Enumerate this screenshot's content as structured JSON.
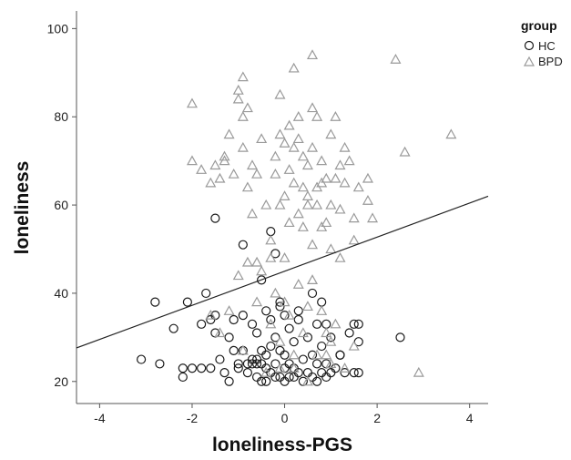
{
  "chart_data": {
    "type": "scatter",
    "xlabel": "loneliness-PGS",
    "ylabel": "loneliness",
    "xlim": [
      -4.5,
      4.4
    ],
    "ylim": [
      15,
      104
    ],
    "xticks": [
      -4,
      -2,
      0,
      2,
      4
    ],
    "yticks": [
      20,
      40,
      60,
      80,
      100
    ],
    "grid": false,
    "legend": {
      "title": "group",
      "position": "top-right"
    },
    "fit_line": {
      "x": [
        -4.5,
        4.4
      ],
      "y": [
        27.6,
        62.0
      ]
    },
    "series": [
      {
        "name": "HC",
        "marker": "circle",
        "color": "#1a1a1a",
        "points": [
          [
            -3.1,
            25
          ],
          [
            -2.8,
            38
          ],
          [
            -2.7,
            24
          ],
          [
            -2.4,
            32
          ],
          [
            -2.2,
            23
          ],
          [
            -2.2,
            21
          ],
          [
            -2.1,
            38
          ],
          [
            -2.0,
            23
          ],
          [
            -1.8,
            23
          ],
          [
            -1.8,
            33
          ],
          [
            -1.7,
            40
          ],
          [
            -1.6,
            23
          ],
          [
            -1.6,
            34
          ],
          [
            -1.5,
            57
          ],
          [
            -1.5,
            35
          ],
          [
            -1.5,
            31
          ],
          [
            -1.4,
            25
          ],
          [
            -1.3,
            22
          ],
          [
            -1.2,
            20
          ],
          [
            -1.2,
            30
          ],
          [
            -1.1,
            27
          ],
          [
            -1.1,
            34
          ],
          [
            -1.0,
            23
          ],
          [
            -1.0,
            24
          ],
          [
            -0.9,
            51
          ],
          [
            -0.9,
            27
          ],
          [
            -0.9,
            35
          ],
          [
            -0.8,
            24
          ],
          [
            -0.8,
            22
          ],
          [
            -0.7,
            25
          ],
          [
            -0.7,
            24
          ],
          [
            -0.7,
            33
          ],
          [
            -0.6,
            25
          ],
          [
            -0.6,
            24
          ],
          [
            -0.6,
            21
          ],
          [
            -0.6,
            31
          ],
          [
            -0.5,
            43
          ],
          [
            -0.5,
            24
          ],
          [
            -0.5,
            20
          ],
          [
            -0.5,
            27
          ],
          [
            -0.4,
            36
          ],
          [
            -0.4,
            23
          ],
          [
            -0.4,
            20
          ],
          [
            -0.4,
            26
          ],
          [
            -0.3,
            54
          ],
          [
            -0.3,
            28
          ],
          [
            -0.3,
            22
          ],
          [
            -0.3,
            34
          ],
          [
            -0.2,
            49
          ],
          [
            -0.2,
            24
          ],
          [
            -0.2,
            21
          ],
          [
            -0.2,
            30
          ],
          [
            -0.1,
            38
          ],
          [
            -0.1,
            27
          ],
          [
            -0.1,
            21
          ],
          [
            -0.1,
            37
          ],
          [
            0.0,
            26
          ],
          [
            0.0,
            23
          ],
          [
            0.0,
            20
          ],
          [
            0.0,
            35
          ],
          [
            0.1,
            32
          ],
          [
            0.1,
            24
          ],
          [
            0.1,
            21
          ],
          [
            0.2,
            29
          ],
          [
            0.2,
            23
          ],
          [
            0.2,
            21
          ],
          [
            0.3,
            36
          ],
          [
            0.3,
            22
          ],
          [
            0.3,
            34
          ],
          [
            0.4,
            25
          ],
          [
            0.4,
            20
          ],
          [
            0.5,
            30
          ],
          [
            0.5,
            22
          ],
          [
            0.6,
            40
          ],
          [
            0.6,
            26
          ],
          [
            0.6,
            21
          ],
          [
            0.7,
            33
          ],
          [
            0.7,
            24
          ],
          [
            0.7,
            20
          ],
          [
            0.8,
            38
          ],
          [
            0.8,
            28
          ],
          [
            0.8,
            22
          ],
          [
            0.9,
            33
          ],
          [
            0.9,
            24
          ],
          [
            0.9,
            21
          ],
          [
            1.0,
            30
          ],
          [
            1.0,
            22
          ],
          [
            1.1,
            23
          ],
          [
            1.2,
            26
          ],
          [
            1.2,
            26
          ],
          [
            1.3,
            22
          ],
          [
            1.4,
            31
          ],
          [
            1.5,
            33
          ],
          [
            1.5,
            22
          ],
          [
            1.6,
            33
          ],
          [
            1.6,
            22
          ],
          [
            1.6,
            29
          ],
          [
            2.5,
            30
          ]
        ]
      },
      {
        "name": "BPD",
        "marker": "triangle",
        "color": "#9a9a9a",
        "points": [
          [
            -2.0,
            83
          ],
          [
            -2.0,
            70
          ],
          [
            -1.8,
            68
          ],
          [
            -1.6,
            65
          ],
          [
            -1.5,
            69
          ],
          [
            -1.4,
            66
          ],
          [
            -1.3,
            70
          ],
          [
            -1.3,
            71
          ],
          [
            -1.2,
            76
          ],
          [
            -1.1,
            67
          ],
          [
            -1.0,
            84
          ],
          [
            -1.0,
            86
          ],
          [
            -0.9,
            80
          ],
          [
            -0.9,
            89
          ],
          [
            -0.9,
            73
          ],
          [
            -0.8,
            82
          ],
          [
            -0.8,
            64
          ],
          [
            -0.7,
            69
          ],
          [
            -0.7,
            58
          ],
          [
            -0.6,
            47
          ],
          [
            -0.6,
            67
          ],
          [
            -0.5,
            75
          ],
          [
            -0.4,
            60
          ],
          [
            -0.3,
            52
          ],
          [
            -0.2,
            71
          ],
          [
            -0.2,
            67
          ],
          [
            -0.1,
            85
          ],
          [
            -0.1,
            76
          ],
          [
            -0.1,
            60
          ],
          [
            0.0,
            74
          ],
          [
            0.0,
            62
          ],
          [
            0.0,
            48
          ],
          [
            0.1,
            78
          ],
          [
            0.1,
            68
          ],
          [
            0.1,
            56
          ],
          [
            0.2,
            91
          ],
          [
            0.2,
            73
          ],
          [
            0.2,
            65
          ],
          [
            0.3,
            80
          ],
          [
            0.3,
            75
          ],
          [
            0.3,
            58
          ],
          [
            0.4,
            71
          ],
          [
            0.4,
            64
          ],
          [
            0.4,
            55
          ],
          [
            0.5,
            69
          ],
          [
            0.5,
            60
          ],
          [
            0.5,
            62
          ],
          [
            0.6,
            94
          ],
          [
            0.6,
            82
          ],
          [
            0.6,
            73
          ],
          [
            0.7,
            80
          ],
          [
            0.7,
            64
          ],
          [
            0.7,
            60
          ],
          [
            0.8,
            70
          ],
          [
            0.8,
            65
          ],
          [
            0.8,
            55
          ],
          [
            0.9,
            66
          ],
          [
            0.9,
            56
          ],
          [
            1.0,
            76
          ],
          [
            1.0,
            60
          ],
          [
            1.0,
            50
          ],
          [
            1.1,
            80
          ],
          [
            1.1,
            66
          ],
          [
            1.2,
            69
          ],
          [
            1.2,
            59
          ],
          [
            1.3,
            73
          ],
          [
            1.3,
            65
          ],
          [
            1.4,
            70
          ],
          [
            1.5,
            57
          ],
          [
            1.5,
            52
          ],
          [
            1.6,
            64
          ],
          [
            1.8,
            66
          ],
          [
            1.8,
            61
          ],
          [
            1.9,
            57
          ],
          [
            2.4,
            93
          ],
          [
            2.6,
            72
          ],
          [
            3.6,
            76
          ],
          [
            -1.6,
            35
          ],
          [
            -1.4,
            31
          ],
          [
            -1.2,
            36
          ],
          [
            -1.0,
            44
          ],
          [
            -0.8,
            47
          ],
          [
            -0.6,
            38
          ],
          [
            -0.5,
            45
          ],
          [
            -0.3,
            33
          ],
          [
            -0.2,
            40
          ],
          [
            -0.1,
            29
          ],
          [
            0.0,
            38
          ],
          [
            0.1,
            35
          ],
          [
            0.2,
            26
          ],
          [
            0.3,
            42
          ],
          [
            0.4,
            31
          ],
          [
            0.5,
            37
          ],
          [
            0.6,
            43
          ],
          [
            0.7,
            26
          ],
          [
            0.8,
            36
          ],
          [
            0.9,
            31
          ],
          [
            1.0,
            29
          ],
          [
            1.1,
            33
          ],
          [
            1.3,
            23
          ],
          [
            1.5,
            28
          ],
          [
            2.9,
            22
          ],
          [
            0.2,
            23
          ],
          [
            0.9,
            26
          ],
          [
            -0.4,
            22
          ],
          [
            -0.1,
            23
          ],
          [
            0.5,
            20
          ],
          [
            1.0,
            24
          ],
          [
            -0.9,
            27
          ],
          [
            1.2,
            48
          ],
          [
            0.6,
            51
          ],
          [
            -0.3,
            48
          ]
        ]
      }
    ]
  }
}
